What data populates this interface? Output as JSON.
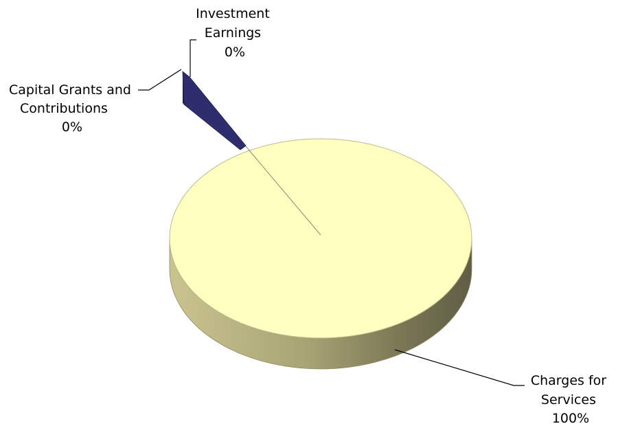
{
  "chart_data": {
    "type": "pie",
    "style": "3d",
    "categories": [
      "Charges for Services",
      "Capital Grants and Contributions",
      "Investment Earnings"
    ],
    "values": [
      100,
      0,
      0
    ],
    "slices": [
      {
        "name": "Charges for Services",
        "value": 100,
        "label_lines": [
          "Charges for",
          "Services",
          "100%"
        ],
        "color": "#ffffc0"
      },
      {
        "name": "Capital Grants and Contributions",
        "value": 0,
        "label_lines": [
          "Capital Grants and",
          "Contributions",
          "0%"
        ],
        "color": "#2e2e6e"
      },
      {
        "name": "Investment Earnings",
        "value": 0,
        "label_lines": [
          "Investment",
          "Earnings",
          "0%"
        ],
        "color": "#2e2e6e"
      }
    ],
    "legend": "none"
  }
}
